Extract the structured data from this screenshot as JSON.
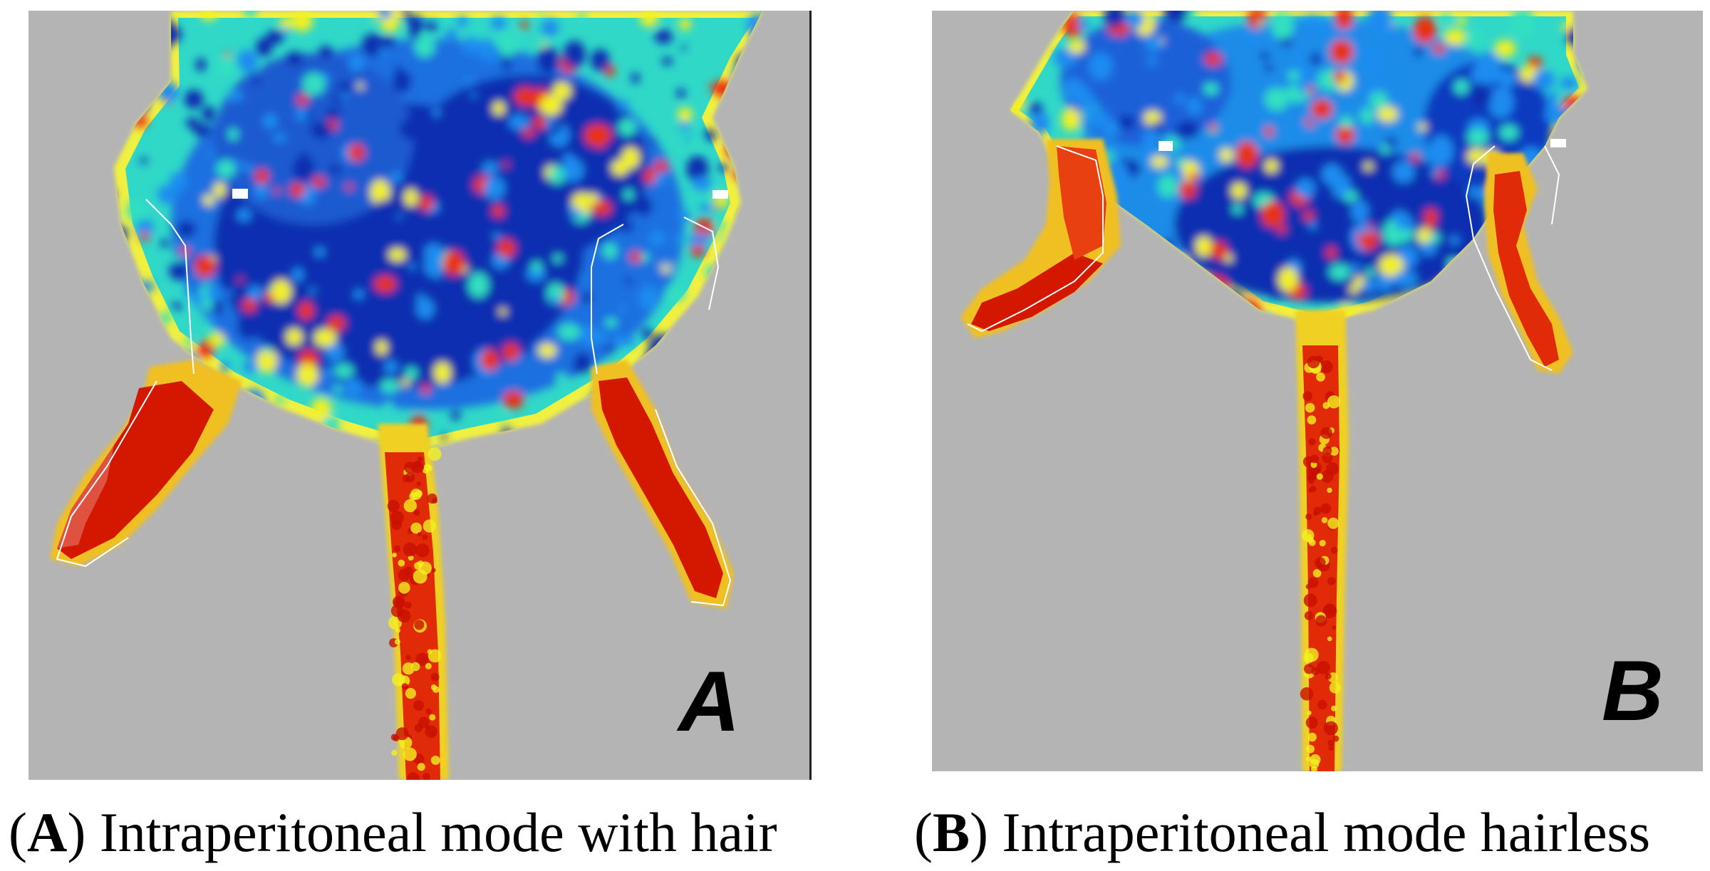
{
  "panels": [
    {
      "letter": "A",
      "caption_letter": "A",
      "caption_text": "Intraperitoneal mode with hair"
    },
    {
      "letter": "B",
      "caption_letter": "B",
      "caption_text": "Intraperitoneal mode hairless"
    }
  ],
  "colors": {
    "background": "#b4b4b4",
    "low": "#0a2fb0",
    "mid_low": "#1a8cf0",
    "mid": "#30e0c0",
    "mid_high": "#f2f020",
    "high": "#e83010",
    "max": "#c81000"
  }
}
